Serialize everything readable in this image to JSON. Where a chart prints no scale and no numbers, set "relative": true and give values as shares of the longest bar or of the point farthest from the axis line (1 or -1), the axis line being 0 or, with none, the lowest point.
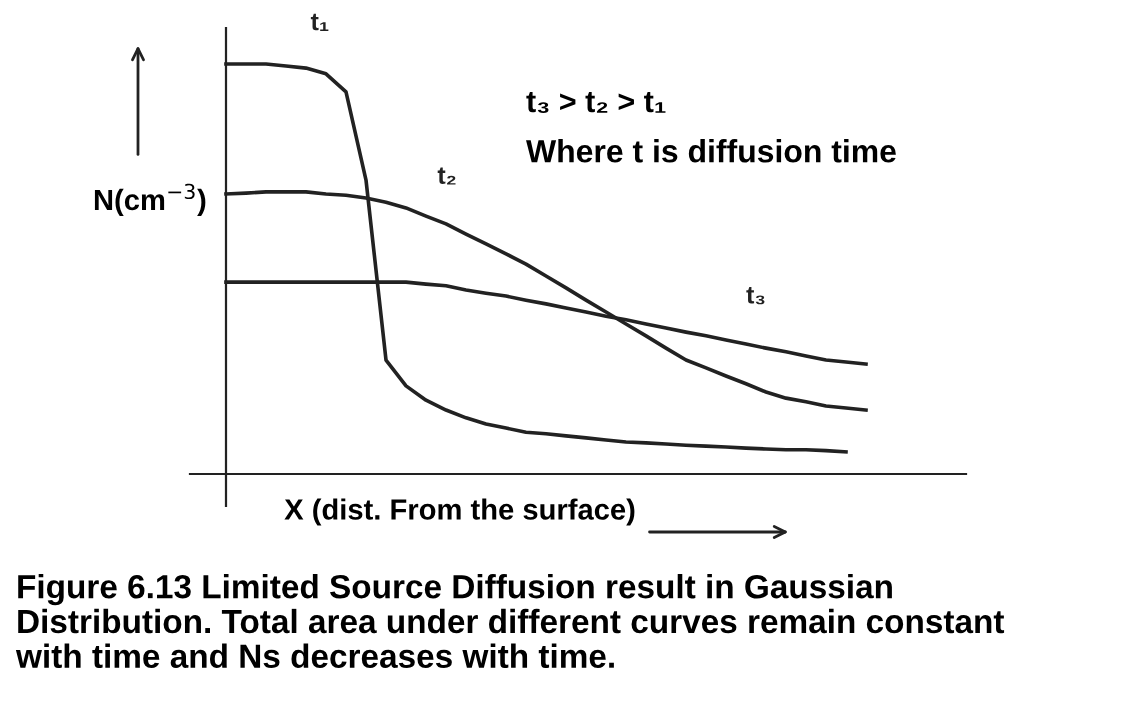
{
  "chart_data": {
    "type": "line",
    "relative": true,
    "xlabel": "X (dist. From the surface)",
    "ylabel": "N(cm$^{−3}$)",
    "annotations": [
      "t₃ > t₂ > t₁",
      "Where t is diffusion time",
      "Figure 6.13 Limited Source Diffusion result in Gaussian\nDistribution. Total area under different curves remain constant\nwith time and Ns decreases with time."
    ],
    "categories": [
      null,
      null,
      null,
      null,
      null,
      null,
      null,
      null,
      null,
      null,
      null,
      null,
      null,
      null,
      null,
      null,
      null,
      null,
      null,
      null,
      null,
      null,
      null,
      null,
      null,
      null,
      null,
      null,
      null,
      null,
      null,
      null,
      null
    ],
    "series": [
      {
        "name": "t₁",
        "color": "#222222",
        "values": [
          1.0,
          1.0,
          1.0,
          0.995,
          0.99,
          0.976,
          0.932,
          0.717,
          0.278,
          0.215,
          0.18,
          0.156,
          0.137,
          0.122,
          0.112,
          0.102,
          0.098,
          0.093,
          0.088,
          0.083,
          0.078,
          0.076,
          0.073,
          0.07,
          0.068,
          0.066,
          0.063,
          0.061,
          0.059,
          0.059,
          0.057,
          0.054,
          null
        ]
      },
      {
        "name": "t₂",
        "color": "#222222",
        "values": [
          0.683,
          0.685,
          0.688,
          0.688,
          0.688,
          0.683,
          0.68,
          0.673,
          0.663,
          0.649,
          0.629,
          0.61,
          0.585,
          0.561,
          0.537,
          0.512,
          0.483,
          0.454,
          0.424,
          0.395,
          0.366,
          0.337,
          0.307,
          0.278,
          0.259,
          0.239,
          0.22,
          0.2,
          0.185,
          0.176,
          0.166,
          0.161,
          0.156
        ]
      },
      {
        "name": "t₃",
        "color": "#222222",
        "values": [
          0.468,
          0.468,
          0.468,
          0.468,
          0.468,
          0.468,
          0.468,
          0.468,
          0.468,
          0.468,
          0.463,
          0.459,
          0.449,
          0.441,
          0.434,
          0.424,
          0.415,
          0.405,
          0.395,
          0.385,
          0.376,
          0.366,
          0.356,
          0.346,
          0.337,
          0.327,
          0.317,
          0.307,
          0.298,
          0.288,
          0.278,
          0.273,
          0.268
        ]
      }
    ]
  }
}
